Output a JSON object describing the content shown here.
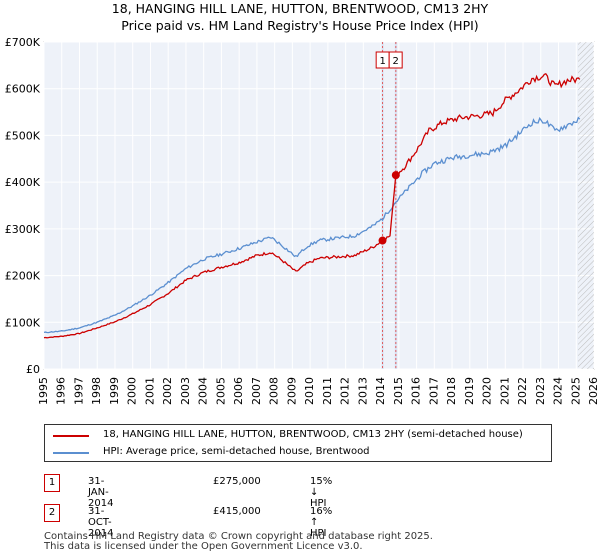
{
  "chart_data": {
    "type": "line",
    "title": "18, HANGING HILL LANE, HUTTON, BRENTWOOD, CM13 2HY",
    "subtitle": "Price paid vs. HM Land Registry's House Price Index (HPI)",
    "xlim": [
      1995,
      2026
    ],
    "ylim": [
      0,
      700000
    ],
    "x_ticks": [
      "1995",
      "1996",
      "1997",
      "1998",
      "1999",
      "2000",
      "2001",
      "2002",
      "2003",
      "2004",
      "2005",
      "2006",
      "2007",
      "2008",
      "2009",
      "2010",
      "2011",
      "2012",
      "2013",
      "2014",
      "2015",
      "2016",
      "2017",
      "2018",
      "2019",
      "2020",
      "2021",
      "2022",
      "2023",
      "2024",
      "2025",
      "2026"
    ],
    "y_ticks": [
      {
        "value": 0,
        "label": "£0"
      },
      {
        "value": 100000,
        "label": "£100K"
      },
      {
        "value": 200000,
        "label": "£200K"
      },
      {
        "value": 300000,
        "label": "£300K"
      },
      {
        "value": 400000,
        "label": "£400K"
      },
      {
        "value": 500000,
        "label": "£500K"
      },
      {
        "value": 600000,
        "label": "£600K"
      },
      {
        "value": 700000,
        "label": "£700K"
      }
    ],
    "grid": true,
    "future_hatch_from": 2025.1,
    "series": [
      {
        "name": "18, HANGING HILL LANE, HUTTON, BRENTWOOD, CM13 2HY (semi-detached house)",
        "color": "#cc0000",
        "points": [
          [
            1995.0,
            67000
          ],
          [
            1996.0,
            70000
          ],
          [
            1997.0,
            76000
          ],
          [
            1998.0,
            88000
          ],
          [
            1999.0,
            101000
          ],
          [
            2000.0,
            118000
          ],
          [
            2001.0,
            138000
          ],
          [
            2002.0,
            162000
          ],
          [
            2003.0,
            190000
          ],
          [
            2004.0,
            207000
          ],
          [
            2005.0,
            218000
          ],
          [
            2006.0,
            228000
          ],
          [
            2007.0,
            243000
          ],
          [
            2007.8,
            250000
          ],
          [
            2008.5,
            230000
          ],
          [
            2009.2,
            208000
          ],
          [
            2009.8,
            225000
          ],
          [
            2010.5,
            237000
          ],
          [
            2011.5,
            240000
          ],
          [
            2012.5,
            243000
          ],
          [
            2013.5,
            260000
          ],
          [
            2014.08,
            275000
          ],
          [
            2014.5,
            285000
          ],
          [
            2014.83,
            415000
          ],
          [
            2015.3,
            432000
          ],
          [
            2016.0,
            468000
          ],
          [
            2016.7,
            510000
          ],
          [
            2017.5,
            528000
          ],
          [
            2018.5,
            538000
          ],
          [
            2019.5,
            542000
          ],
          [
            2020.3,
            548000
          ],
          [
            2021.0,
            575000
          ],
          [
            2021.8,
            598000
          ],
          [
            2022.5,
            622000
          ],
          [
            2023.2,
            628000
          ],
          [
            2023.8,
            605000
          ],
          [
            2024.5,
            618000
          ],
          [
            2025.2,
            620000
          ]
        ]
      },
      {
        "name": "HPI: Average price, semi-detached house, Brentwood",
        "color": "#5b8fd0",
        "points": [
          [
            1995.0,
            78000
          ],
          [
            1996.0,
            81000
          ],
          [
            1997.0,
            88000
          ],
          [
            1998.0,
            100000
          ],
          [
            1999.0,
            115000
          ],
          [
            2000.0,
            135000
          ],
          [
            2001.0,
            158000
          ],
          [
            2002.0,
            185000
          ],
          [
            2003.0,
            215000
          ],
          [
            2004.0,
            235000
          ],
          [
            2005.0,
            246000
          ],
          [
            2006.0,
            258000
          ],
          [
            2007.0,
            272000
          ],
          [
            2007.8,
            282000
          ],
          [
            2008.5,
            262000
          ],
          [
            2009.2,
            240000
          ],
          [
            2009.8,
            262000
          ],
          [
            2010.5,
            275000
          ],
          [
            2011.5,
            280000
          ],
          [
            2012.5,
            285000
          ],
          [
            2013.5,
            305000
          ],
          [
            2014.08,
            322000
          ],
          [
            2014.83,
            358000
          ],
          [
            2015.5,
            385000
          ],
          [
            2016.3,
            418000
          ],
          [
            2017.0,
            440000
          ],
          [
            2018.0,
            452000
          ],
          [
            2019.0,
            458000
          ],
          [
            2020.0,
            462000
          ],
          [
            2021.0,
            478000
          ],
          [
            2021.8,
            505000
          ],
          [
            2022.5,
            528000
          ],
          [
            2023.2,
            532000
          ],
          [
            2023.8,
            510000
          ],
          [
            2024.5,
            522000
          ],
          [
            2025.2,
            535000
          ]
        ]
      }
    ],
    "transactions": [
      {
        "id": "1",
        "x": 2014.08,
        "price": 275000,
        "date": "31-JAN-2014",
        "price_label": "£275,000",
        "hpi_label": "15% ↓ HPI"
      },
      {
        "id": "2",
        "x": 2014.83,
        "price": 415000,
        "date": "31-OCT-2014",
        "price_label": "£415,000",
        "hpi_label": "16% ↑ HPI"
      }
    ],
    "legend_location": "below"
  },
  "footer": {
    "line1": "Contains HM Land Registry data © Crown copyright and database right 2025.",
    "line2": "This data is licensed under the Open Government Licence v3.0."
  }
}
